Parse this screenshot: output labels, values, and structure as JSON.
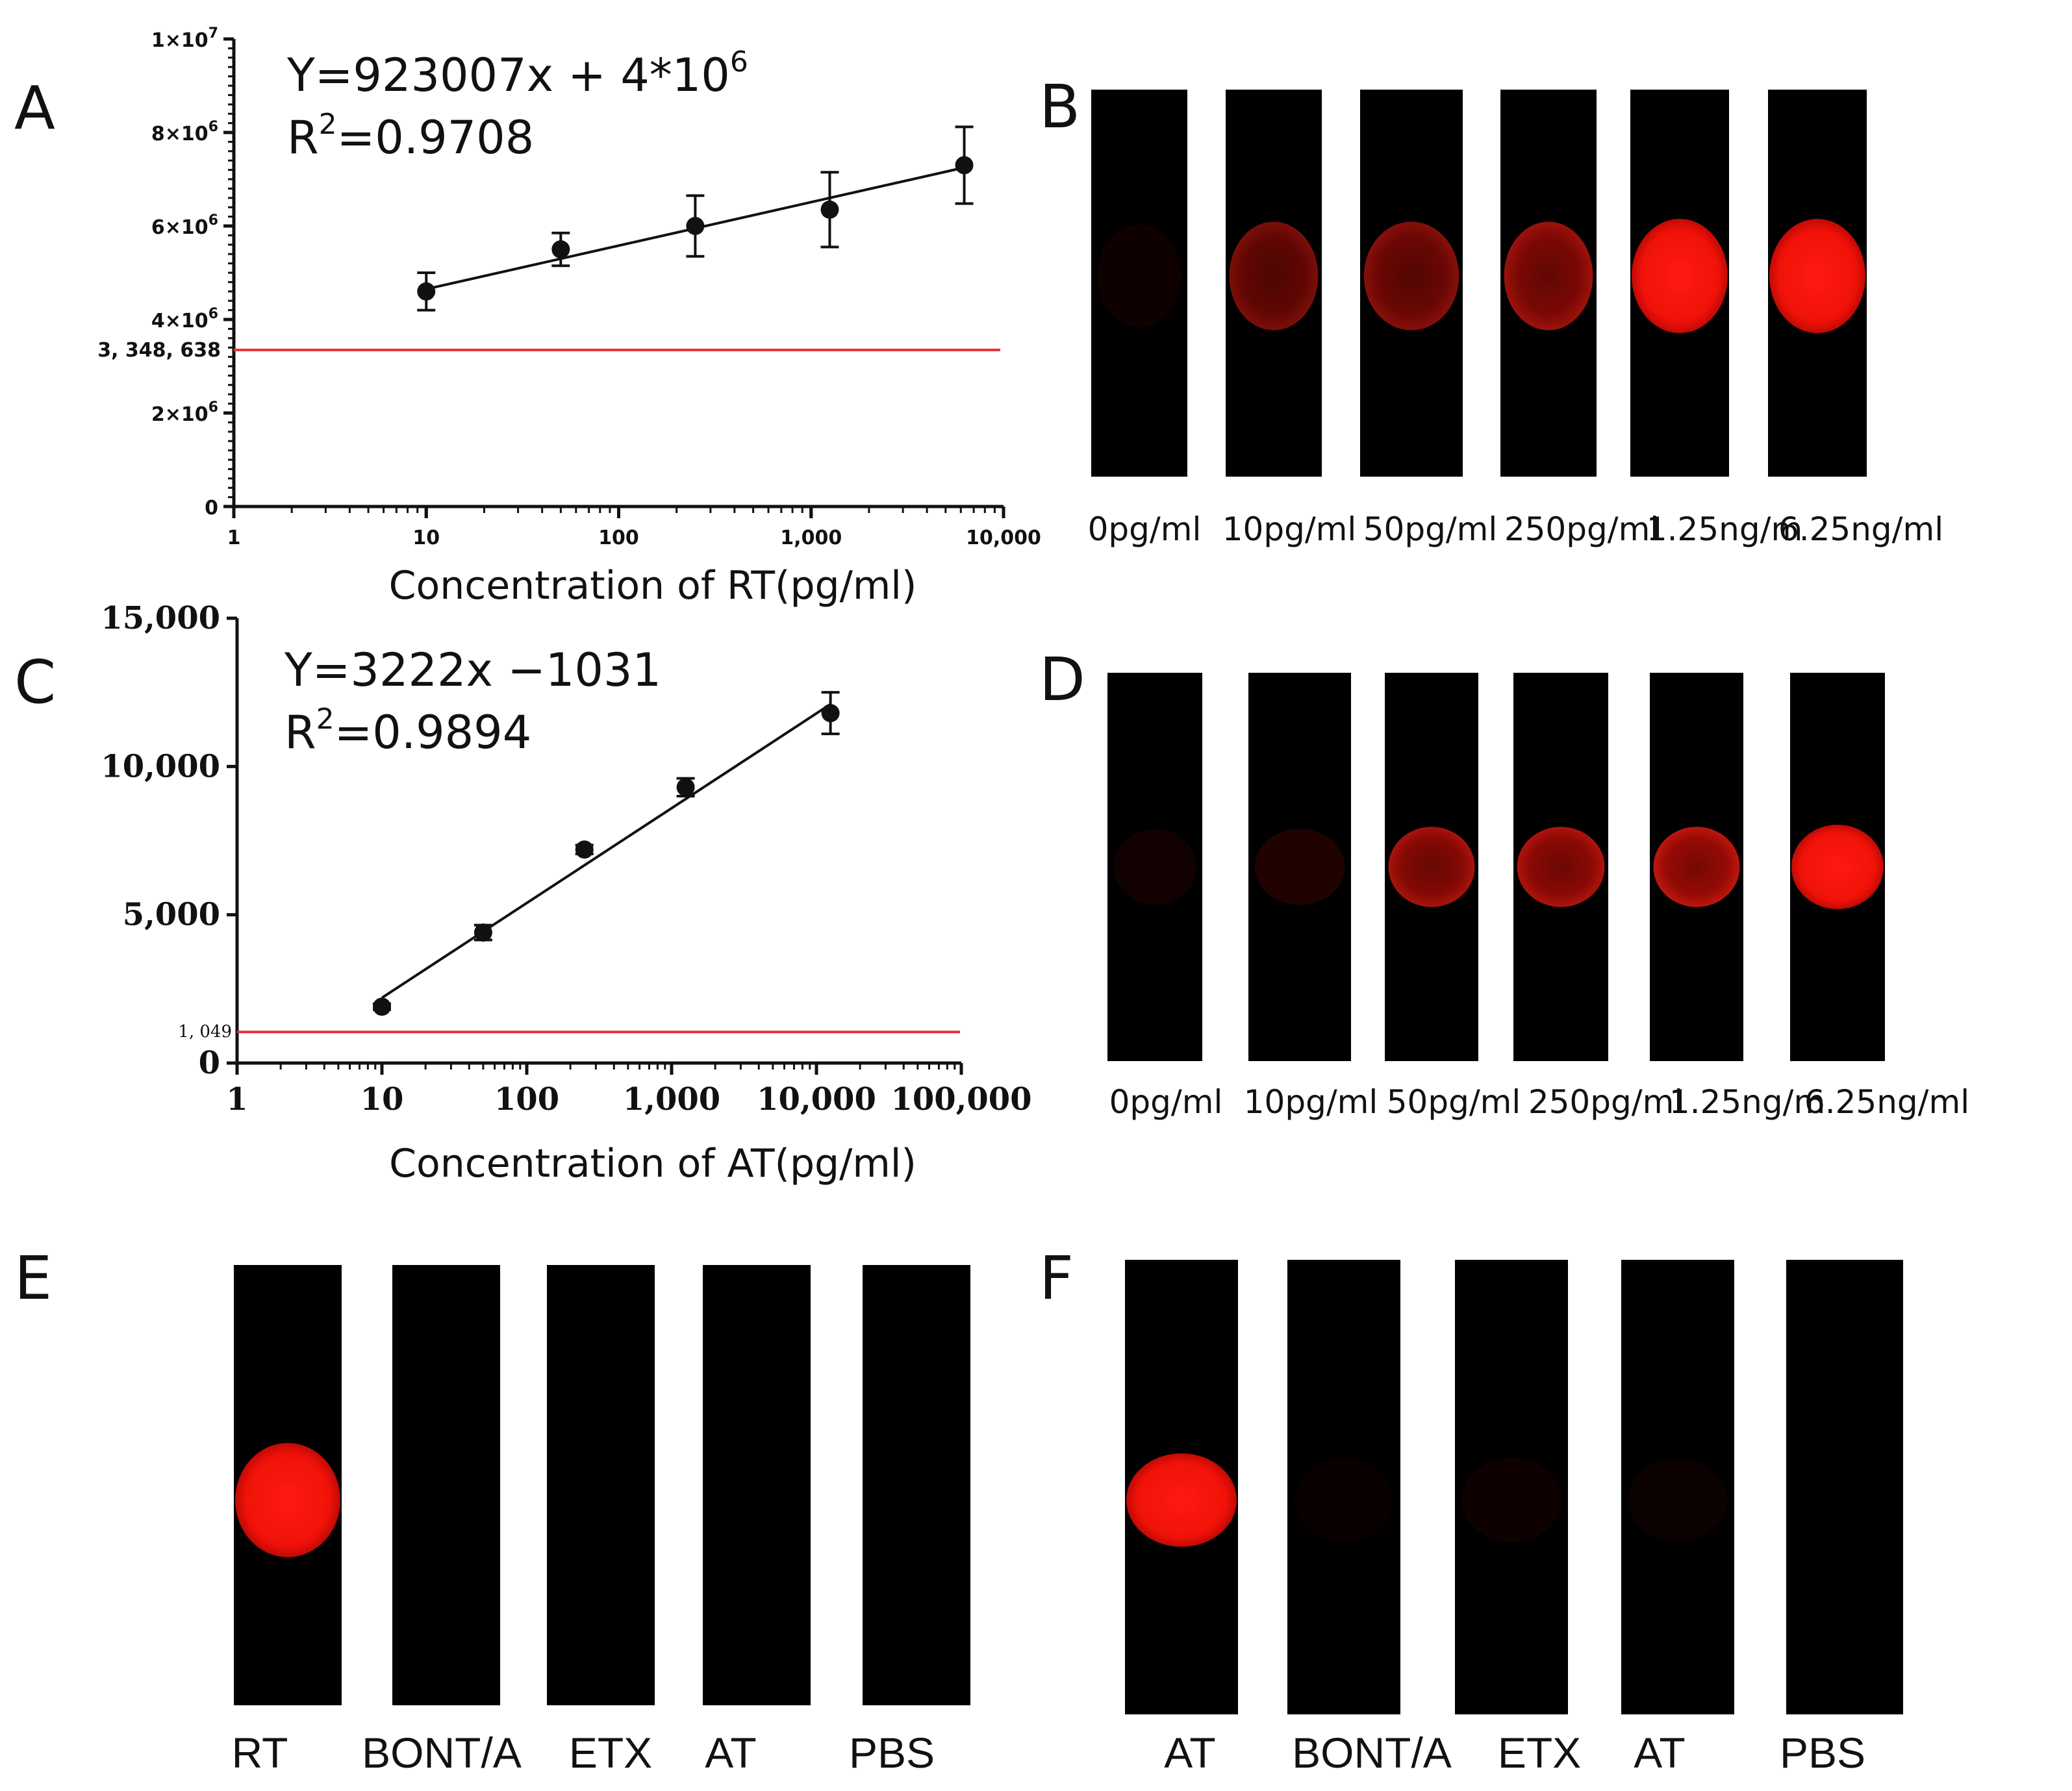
{
  "panels": {
    "A": {
      "letter": "A"
    },
    "B": {
      "letter": "B"
    },
    "C": {
      "letter": "C"
    },
    "D": {
      "letter": "D"
    },
    "E": {
      "letter": "E"
    },
    "F": {
      "letter": "F"
    }
  },
  "chart_data": [
    {
      "id": "A",
      "type": "scatter",
      "xscale": "log",
      "xlabel": "Concentration of RT(pg/ml)",
      "ylabel": "",
      "equation": "Y=923007x + 4*10",
      "equation_exp": "6",
      "r2_prefix": "R",
      "r2_exp": "2",
      "r2_value": "=0.9708",
      "x": [
        10,
        50,
        250,
        1250,
        6250
      ],
      "y": [
        4600000,
        5500000,
        6000000,
        6350000,
        7300000
      ],
      "yerr": [
        400000,
        350000,
        650000,
        800000,
        820000
      ],
      "fit_x": [
        10,
        6250
      ],
      "fit_y": [
        4650000,
        7250000
      ],
      "xlim": [
        1,
        10000
      ],
      "ylim": [
        0,
        10000000
      ],
      "threshold": 3348638,
      "threshold_label": "3, 348, 638",
      "x_ticks": [
        {
          "v": 1,
          "label": "1"
        },
        {
          "v": 10,
          "label": "10"
        },
        {
          "v": 100,
          "label": "100"
        },
        {
          "v": 1000,
          "label": "1,000"
        },
        {
          "v": 10000,
          "label": "10,000"
        }
      ],
      "y_ticks": [
        {
          "v": 0,
          "label": "0",
          "exp": ""
        },
        {
          "v": 2000000,
          "label": "2×10",
          "exp": "6"
        },
        {
          "v": 4000000,
          "label": "4×10",
          "exp": "6"
        },
        {
          "v": 6000000,
          "label": "6×10",
          "exp": "6"
        },
        {
          "v": 8000000,
          "label": "8×10",
          "exp": "6"
        },
        {
          "v": 10000000,
          "label": "1×10",
          "exp": "7"
        }
      ],
      "line_color": "#111111",
      "threshold_color": "#e8323a"
    },
    {
      "id": "C",
      "type": "scatter",
      "xscale": "log",
      "xlabel": "Concentration of AT(pg/ml)",
      "ylabel": "",
      "equation": "Y=3222x −1031",
      "r2_prefix": "R",
      "r2_exp": "2",
      "r2_value": "=0.9894",
      "x": [
        10,
        50,
        250,
        1250,
        12500
      ],
      "y": [
        1900,
        4400,
        7200,
        9300,
        11800
      ],
      "yerr": [
        100,
        250,
        150,
        300,
        700
      ],
      "fit_x": [
        10,
        12500
      ],
      "fit_y": [
        2200,
        12100
      ],
      "xlim": [
        1,
        100000
      ],
      "ylim": [
        0,
        15000
      ],
      "threshold": 1049,
      "threshold_label": "1, 049",
      "x_ticks": [
        {
          "v": 1,
          "label": "1"
        },
        {
          "v": 10,
          "label": "10"
        },
        {
          "v": 100,
          "label": "100"
        },
        {
          "v": 1000,
          "label": "1,000"
        },
        {
          "v": 10000,
          "label": "10,000"
        },
        {
          "v": 100000,
          "label": "100,000"
        }
      ],
      "y_ticks": [
        {
          "v": 0,
          "label": "0"
        },
        {
          "v": 5000,
          "label": "5,000"
        },
        {
          "v": 10000,
          "label": "10,000"
        },
        {
          "v": 15000,
          "label": "15,000"
        }
      ],
      "line_color": "#111111",
      "threshold_color": "#e8323a"
    }
  ],
  "strips_B": {
    "labels": [
      "0pg/ml",
      "10pg/ml",
      "50pg/ml",
      "250pg/ml",
      "1.25ng/m",
      "6.25ng/ml"
    ],
    "intensity": [
      0.08,
      0.55,
      0.6,
      0.7,
      0.92,
      1.0
    ]
  },
  "strips_D": {
    "labels": [
      "0pg/ml",
      "10pg/ml",
      "50pg/ml",
      "250pg/ml",
      "1.25ng/m",
      "6.25ng/ml"
    ],
    "intensity": [
      0.1,
      0.18,
      0.75,
      0.78,
      0.85,
      1.0
    ]
  },
  "strips_E": {
    "labels": [
      "RT",
      "BONT/A",
      "ETX",
      "AT",
      "PBS"
    ],
    "intensity": [
      1.0,
      0,
      0,
      0,
      0
    ]
  },
  "strips_F": {
    "labels": [
      "AT",
      "BONT/A",
      "ETX",
      "AT",
      "PBS"
    ],
    "intensity": [
      1.0,
      0.05,
      0.08,
      0.06,
      0
    ]
  }
}
